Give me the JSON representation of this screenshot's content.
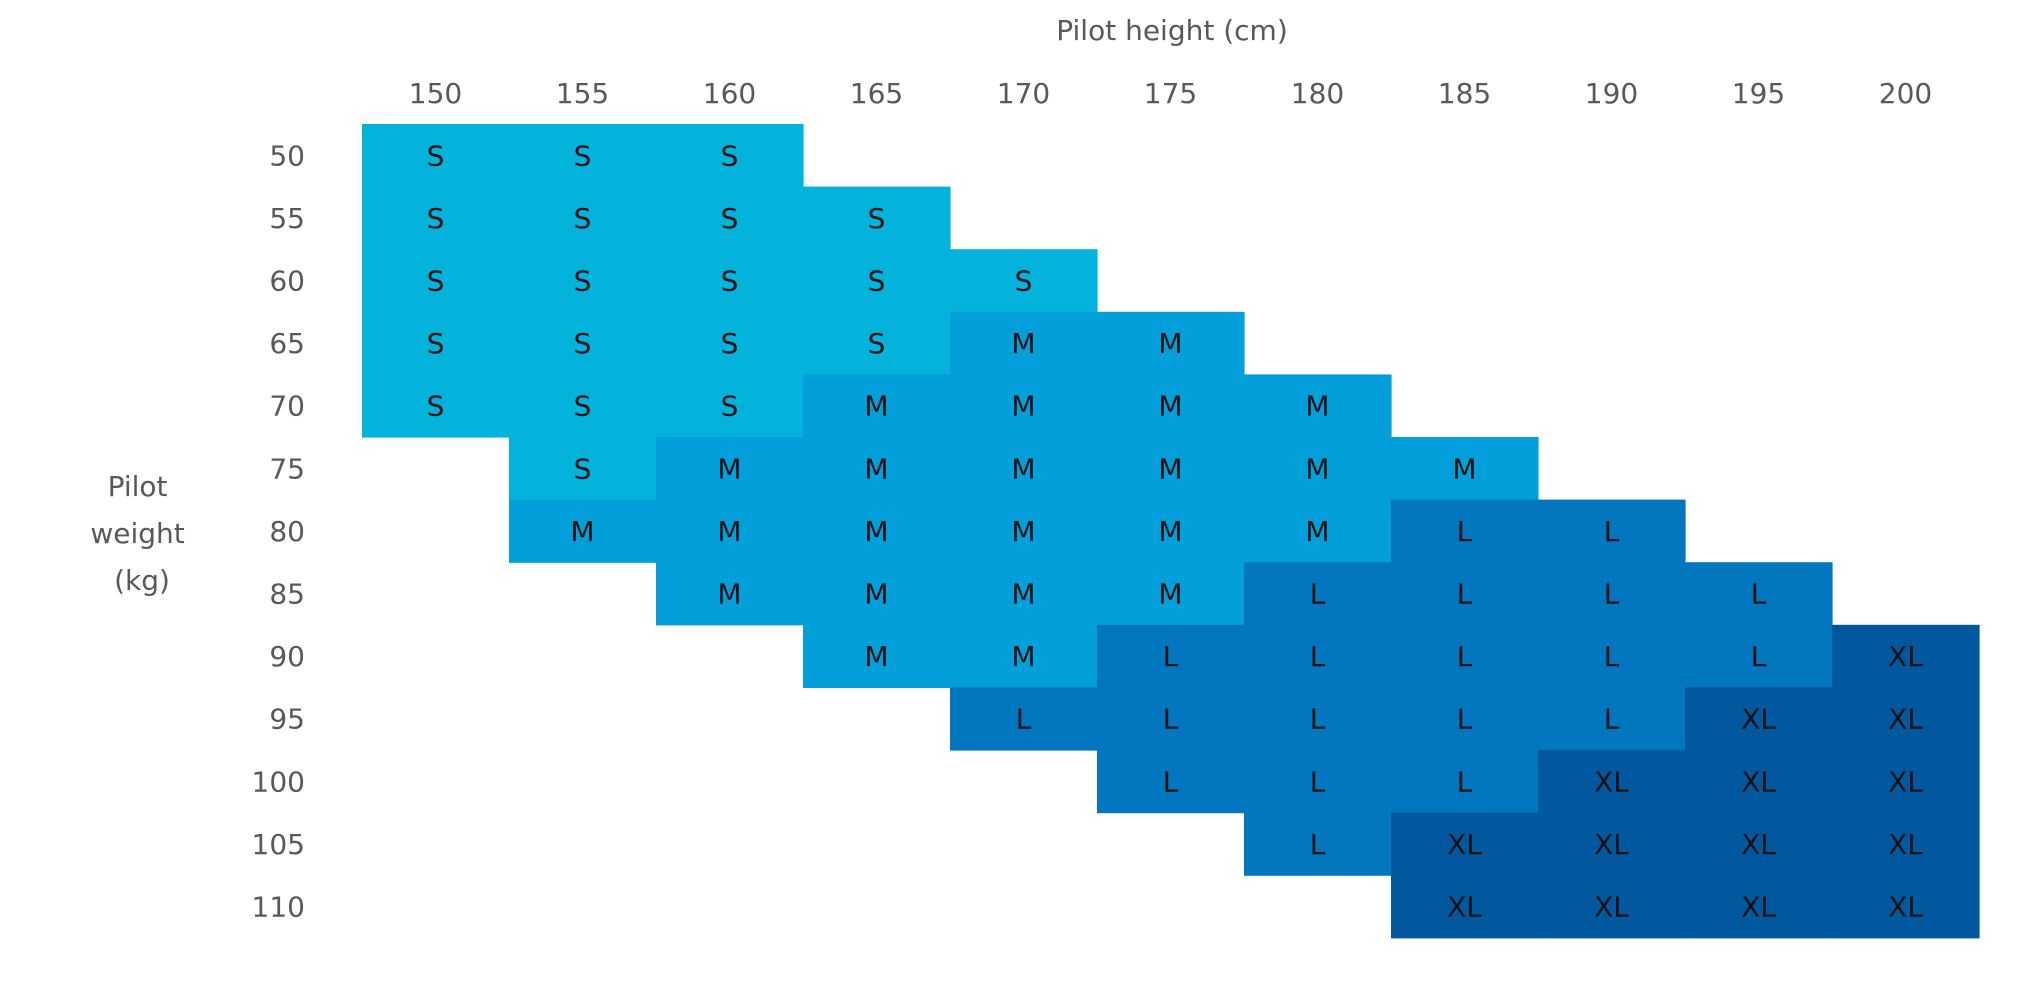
{
  "chart_data": {
    "type": "heatmap",
    "title": "",
    "xlabel": "Pilot height (cm)",
    "ylabel_lines": [
      "Pilot",
      "weight",
      "(kg)"
    ],
    "x_axis_position": "top",
    "grid": false,
    "legend": "none",
    "x": [
      "150",
      "155",
      "160",
      "165",
      "170",
      "175",
      "180",
      "185",
      "190",
      "195",
      "200"
    ],
    "y": [
      "50",
      "55",
      "60",
      "65",
      "70",
      "75",
      "80",
      "85",
      "90",
      "95",
      "100",
      "105",
      "110"
    ],
    "size_colors": {
      "S": "#03b3db",
      "M": "#039fdb",
      "L": "#0277bf",
      "XL": "#02589f"
    },
    "sizes": [
      [
        "S",
        "S",
        "S",
        "",
        "",
        "",
        "",
        "",
        "",
        "",
        ""
      ],
      [
        "S",
        "S",
        "S",
        "S",
        "",
        "",
        "",
        "",
        "",
        "",
        ""
      ],
      [
        "S",
        "S",
        "S",
        "S",
        "S",
        "",
        "",
        "",
        "",
        "",
        ""
      ],
      [
        "S",
        "S",
        "S",
        "S",
        "M",
        "M",
        "",
        "",
        "",
        "",
        ""
      ],
      [
        "S",
        "S",
        "S",
        "M",
        "M",
        "M",
        "M",
        "",
        "",
        "",
        ""
      ],
      [
        "",
        "S",
        "M",
        "M",
        "M",
        "M",
        "M",
        "M",
        "",
        "",
        ""
      ],
      [
        "",
        "M",
        "M",
        "M",
        "M",
        "M",
        "M",
        "L",
        "L",
        "",
        ""
      ],
      [
        "",
        "",
        "M",
        "M",
        "M",
        "M",
        "L",
        "L",
        "L",
        "L",
        ""
      ],
      [
        "",
        "",
        "",
        "M",
        "M",
        "L",
        "L",
        "L",
        "L",
        "L",
        "XL"
      ],
      [
        "",
        "",
        "",
        "",
        "L",
        "L",
        "L",
        "L",
        "L",
        "XL",
        "XL"
      ],
      [
        "",
        "",
        "",
        "",
        "",
        "L",
        "L",
        "L",
        "XL",
        "XL",
        "XL"
      ],
      [
        "",
        "",
        "",
        "",
        "",
        "",
        "L",
        "XL",
        "XL",
        "XL",
        "XL"
      ],
      [
        "",
        "",
        "",
        "",
        "",
        "",
        "",
        "XL",
        "XL",
        "XL",
        "XL"
      ]
    ]
  }
}
